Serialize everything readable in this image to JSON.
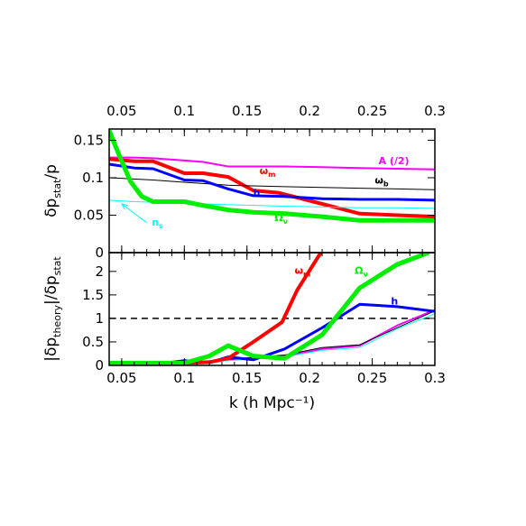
{
  "chart_data": [
    {
      "type": "line",
      "panel": "upper",
      "ylabel_parts": [
        "δp",
        "stat",
        "/p"
      ],
      "xlim": [
        0.04,
        0.3
      ],
      "ylim": [
        0,
        0.165
      ],
      "top_xticks": [
        "0.05",
        "0.1",
        "0.15",
        "0.2",
        "0.25",
        "0.3"
      ],
      "yticks": [
        "0",
        "0.05",
        "0.1",
        "0.15"
      ],
      "colors": {
        "A": "#ff00ff",
        "omega_m": "#ff0000",
        "omega_b": "#000000",
        "h": "#0000ff",
        "n_s": "#00ffff",
        "Omega_nu": "#00ee00"
      },
      "series": [
        {
          "name": "A (/2)",
          "key": "A",
          "x": [
            0.04,
            0.06,
            0.075,
            0.1,
            0.115,
            0.135,
            0.155,
            0.18,
            0.21,
            0.24,
            0.27,
            0.3
          ],
          "y": [
            0.127,
            0.127,
            0.126,
            0.123,
            0.121,
            0.115,
            0.115,
            0.115,
            0.114,
            0.113,
            0.112,
            0.111
          ]
        },
        {
          "name": "ω_m",
          "key": "omega_m",
          "x": [
            0.04,
            0.06,
            0.075,
            0.1,
            0.115,
            0.135,
            0.155,
            0.175,
            0.21,
            0.24,
            0.27,
            0.3
          ],
          "y": [
            0.125,
            0.122,
            0.122,
            0.106,
            0.106,
            0.101,
            0.083,
            0.08,
            0.065,
            0.052,
            0.05,
            0.048
          ]
        },
        {
          "name": "ω_b",
          "key": "omega_b",
          "x": [
            0.04,
            0.075,
            0.1,
            0.135,
            0.18,
            0.21,
            0.24,
            0.27,
            0.3
          ],
          "y": [
            0.1,
            0.097,
            0.094,
            0.09,
            0.088,
            0.087,
            0.086,
            0.085,
            0.084
          ]
        },
        {
          "name": "h",
          "key": "h",
          "x": [
            0.04,
            0.06,
            0.075,
            0.1,
            0.115,
            0.135,
            0.155,
            0.18,
            0.21,
            0.24,
            0.27,
            0.3
          ],
          "y": [
            0.118,
            0.113,
            0.112,
            0.097,
            0.096,
            0.085,
            0.076,
            0.075,
            0.072,
            0.071,
            0.071,
            0.07
          ]
        },
        {
          "name": "n_s",
          "key": "n_s",
          "x": [
            0.04,
            0.06,
            0.1,
            0.135,
            0.18,
            0.21,
            0.24,
            0.27,
            0.3
          ],
          "y": [
            0.07,
            0.068,
            0.066,
            0.064,
            0.062,
            0.061,
            0.06,
            0.06,
            0.059
          ]
        },
        {
          "name": "Ω_ν",
          "key": "Omega_nu",
          "x": [
            0.04,
            0.048,
            0.057,
            0.066,
            0.075,
            0.1,
            0.115,
            0.135,
            0.155,
            0.18,
            0.21,
            0.24,
            0.27,
            0.3
          ],
          "y": [
            0.163,
            0.13,
            0.095,
            0.075,
            0.068,
            0.068,
            0.063,
            0.057,
            0.054,
            0.052,
            0.048,
            0.043,
            0.043,
            0.043
          ]
        }
      ],
      "annotations": [
        {
          "key": "A",
          "label": "A (/2)",
          "sub": "",
          "x": 0.255,
          "y": 0.118
        },
        {
          "key": "omega_m",
          "label": "ω",
          "sub": "m",
          "x": 0.16,
          "y": 0.105
        },
        {
          "key": "omega_b",
          "label": "ω",
          "sub": "b",
          "x": 0.252,
          "y": 0.092
        },
        {
          "key": "h",
          "label": "h",
          "sub": "",
          "x": 0.155,
          "y": 0.075
        },
        {
          "key": "n_s",
          "label": "n",
          "sub": "s",
          "x": 0.074,
          "y": 0.036
        },
        {
          "key": "Omega_nu",
          "label": "Ω",
          "sub": "ν",
          "x": 0.172,
          "y": 0.042
        }
      ],
      "arrow": {
        "key": "n_s",
        "from": [
          0.07,
          0.04
        ],
        "to": [
          0.05,
          0.065
        ]
      }
    },
    {
      "type": "line",
      "panel": "lower",
      "ylabel_parts": [
        "|δp",
        "theory",
        "|/δp",
        "stat"
      ],
      "xlabel": "k (h Mpc⁻¹)",
      "xlim": [
        0.04,
        0.3
      ],
      "ylim": [
        0,
        2.4
      ],
      "xticks": [
        "0.05",
        "0.1",
        "0.15",
        "0.2",
        "0.25",
        "0.3"
      ],
      "yticks": [
        "0",
        "0.5",
        "1",
        "1.5",
        "2"
      ],
      "reference_line": 1,
      "series": [
        {
          "name": "A (/2)",
          "key": "A",
          "x": [
            0.04,
            0.075,
            0.1,
            0.135,
            0.155,
            0.18,
            0.21,
            0.24,
            0.27,
            0.3
          ],
          "y": [
            0,
            0.02,
            0.05,
            0.12,
            0.16,
            0.2,
            0.35,
            0.42,
            0.85,
            1.18
          ]
        },
        {
          "name": "ω_b",
          "key": "omega_b",
          "x": [
            0.04,
            0.075,
            0.1,
            0.135,
            0.155,
            0.18,
            0.21,
            0.24,
            0.27,
            0.3
          ],
          "y": [
            0,
            0.02,
            0.05,
            0.13,
            0.17,
            0.22,
            0.38,
            0.44,
            0.8,
            1.16
          ]
        },
        {
          "name": "n_s",
          "key": "n_s",
          "x": [
            0.04,
            0.075,
            0.1,
            0.135,
            0.155,
            0.18,
            0.21,
            0.24,
            0.27,
            0.3
          ],
          "y": [
            0,
            0.02,
            0.04,
            0.1,
            0.14,
            0.18,
            0.32,
            0.38,
            0.78,
            1.1
          ]
        },
        {
          "name": "h",
          "key": "h",
          "x": [
            0.04,
            0.075,
            0.1,
            0.12,
            0.135,
            0.155,
            0.18,
            0.21,
            0.24,
            0.27,
            0.3
          ],
          "y": [
            0,
            0.02,
            0.1,
            0.06,
            0.18,
            0.12,
            0.35,
            0.8,
            1.3,
            1.25,
            1.15
          ]
        },
        {
          "name": "ω_m",
          "key": "omega_m",
          "x": [
            0.04,
            0.075,
            0.1,
            0.12,
            0.135,
            0.155,
            0.178,
            0.19,
            0.209
          ],
          "y": [
            0,
            0.02,
            0.05,
            0.07,
            0.15,
            0.5,
            0.92,
            1.6,
            2.4
          ]
        },
        {
          "name": "Ω_ν",
          "key": "Omega_nu",
          "x": [
            0.04,
            0.07,
            0.1,
            0.12,
            0.135,
            0.155,
            0.18,
            0.21,
            0.24,
            0.27,
            0.295
          ],
          "y": [
            0.05,
            0.05,
            0.05,
            0.2,
            0.42,
            0.2,
            0.15,
            0.65,
            1.65,
            2.15,
            2.4
          ]
        }
      ],
      "annotations": [
        {
          "key": "omega_m",
          "label": "ω",
          "sub": "m",
          "x": 0.188,
          "y": 1.95
        },
        {
          "key": "Omega_nu",
          "label": "Ω",
          "sub": "ν",
          "x": 0.236,
          "y": 1.95
        },
        {
          "key": "h",
          "label": "h",
          "sub": "",
          "x": 0.265,
          "y": 1.3
        }
      ]
    }
  ]
}
